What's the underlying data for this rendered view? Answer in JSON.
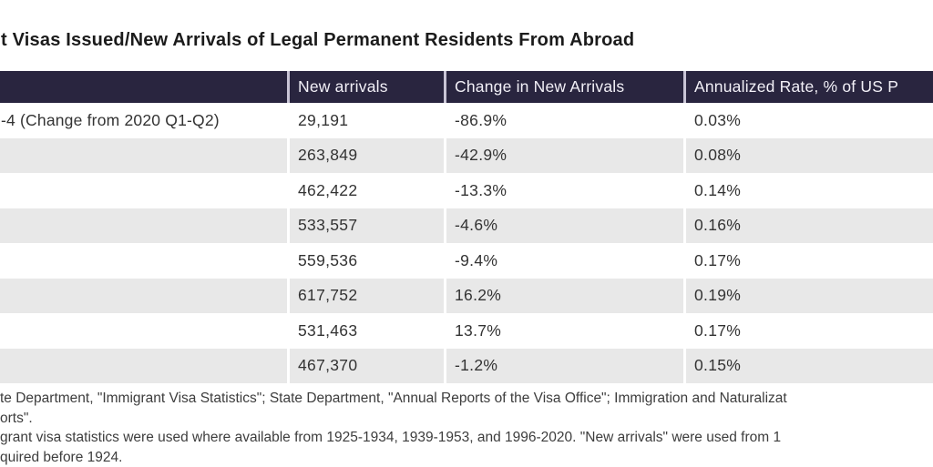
{
  "title": "t Visas Issued/New Arrivals of Legal Permanent Residents From Abroad",
  "chart_data": {
    "type": "table",
    "title": "t Visas Issued/New Arrivals of Legal Permanent Residents From Abroad",
    "columns": [
      "",
      "New arrivals",
      "Change in New Arrivals",
      "Annualized Rate, % of US P"
    ],
    "rows": [
      {
        "label": "-4 (Change from 2020 Q1-Q2)",
        "new_arrivals": "29,191",
        "change": "-86.9%",
        "rate": "0.03%"
      },
      {
        "label": "",
        "new_arrivals": "263,849",
        "change": "-42.9%",
        "rate": "0.08%"
      },
      {
        "label": "",
        "new_arrivals": "462,422",
        "change": "-13.3%",
        "rate": "0.14%"
      },
      {
        "label": "",
        "new_arrivals": "533,557",
        "change": "-4.6%",
        "rate": "0.16%"
      },
      {
        "label": "",
        "new_arrivals": "559,536",
        "change": "-9.4%",
        "rate": "0.17%"
      },
      {
        "label": "",
        "new_arrivals": "617,752",
        "change": "16.2%",
        "rate": "0.19%"
      },
      {
        "label": "",
        "new_arrivals": "531,463",
        "change": "13.7%",
        "rate": "0.17%"
      },
      {
        "label": "",
        "new_arrivals": "467,370",
        "change": "-1.2%",
        "rate": "0.15%"
      }
    ],
    "layout_hints": {
      "striped_rows": true,
      "stripe_on": "even",
      "header_style": "dark"
    }
  },
  "notes": {
    "lines": [
      "te Department, \"Immigrant Visa Statistics\"; State Department, \"Annual Reports of the Visa Office\"; Immigration and Naturalizat",
      "orts\".",
      "grant visa statistics were used where available from 1925-1934, 1939-1953, and 1996-2020. \"New arrivals\" were used from 1",
      "quired before 1924."
    ]
  },
  "colors": {
    "header_bg": "#29253f",
    "header_text": "#f2f0f7",
    "stripe_bg": "#e8e8e8",
    "body_text": "#333333",
    "title_text": "#1b1b1b",
    "notes_text": "#3d3d3d",
    "header_divider": "#c9c5d6"
  }
}
